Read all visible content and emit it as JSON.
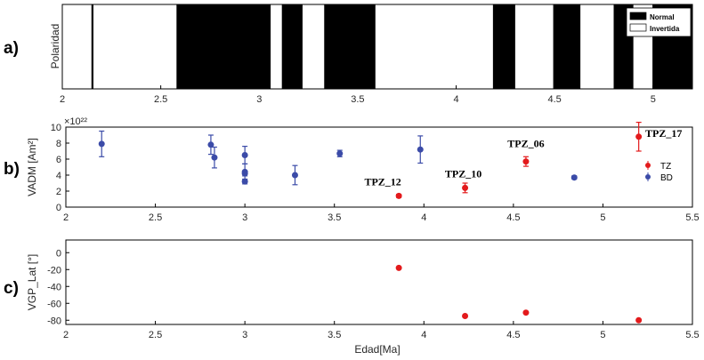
{
  "chart_data": [
    {
      "panel": "a)",
      "type": "polarity-timescale",
      "ylabel": "Polaridad",
      "xlim": [
        2,
        5.2
      ],
      "xticks": [
        "2",
        "2.5",
        "3",
        "3.5",
        "4",
        "4.5",
        "5"
      ],
      "legend": {
        "position": "top-right",
        "entries": [
          {
            "label": "Normal",
            "color": "#000000"
          },
          {
            "label": "Invertida",
            "color": "#ffffff"
          }
        ]
      },
      "normal_intervals": [
        [
          2.148,
          2.158
        ],
        [
          2.58,
          3.058
        ],
        [
          3.115,
          3.22
        ],
        [
          3.33,
          3.59
        ],
        [
          4.187,
          4.3
        ],
        [
          4.493,
          4.631
        ],
        [
          4.8,
          4.9
        ],
        [
          4.997,
          5.2
        ]
      ]
    },
    {
      "panel": "b)",
      "type": "scatter",
      "ylabel": "VADM [Am²]",
      "y_multiplier": "×10²²",
      "xlim": [
        2,
        5.5
      ],
      "ylim": [
        0,
        10
      ],
      "xticks": [
        "2",
        "2.5",
        "3",
        "3.5",
        "4",
        "4.5",
        "5",
        "5.5"
      ],
      "yticks": [
        "0",
        "2",
        "4",
        "6",
        "8",
        "10"
      ],
      "legend": {
        "position": "right",
        "entries": [
          "TZ",
          "BD"
        ]
      },
      "series": [
        {
          "name": "TZ",
          "color": "#e31a1c",
          "points": [
            {
              "x": 3.86,
              "y": 1.4,
              "err": 0.2,
              "label": "TPZ_12"
            },
            {
              "x": 4.23,
              "y": 2.4,
              "err": 0.6,
              "label": "TPZ_10"
            },
            {
              "x": 4.57,
              "y": 5.7,
              "err": 0.6,
              "label": "TPZ_06"
            },
            {
              "x": 5.2,
              "y": 8.8,
              "err": 1.8,
              "label": "TPZ_17"
            }
          ]
        },
        {
          "name": "BD",
          "color": "#3b4ba8",
          "points": [
            {
              "x": 2.2,
              "y": 7.9,
              "err": 1.6
            },
            {
              "x": 2.81,
              "y": 7.8,
              "err": 1.2
            },
            {
              "x": 2.83,
              "y": 6.2,
              "err": 1.3
            },
            {
              "x": 3.0,
              "y": 6.5,
              "err": 1.1
            },
            {
              "x": 3.0,
              "y": 4.4,
              "err": 1.0
            },
            {
              "x": 3.0,
              "y": 4.2,
              "err": 0.3
            },
            {
              "x": 3.0,
              "y": 3.2,
              "err": 0.3
            },
            {
              "x": 3.28,
              "y": 4.0,
              "err": 1.2
            },
            {
              "x": 3.53,
              "y": 6.7,
              "err": 0.4
            },
            {
              "x": 3.98,
              "y": 7.2,
              "err": 1.7
            },
            {
              "x": 4.84,
              "y": 3.7,
              "err": 0.2
            }
          ]
        }
      ]
    },
    {
      "panel": "c)",
      "type": "scatter",
      "ylabel": "VGP_Lat [°]",
      "xlabel": "Edad[Ma]",
      "xlim": [
        2,
        5.5
      ],
      "ylim": [
        -85,
        15
      ],
      "xticks": [
        "2",
        "2.5",
        "3",
        "3.5",
        "4",
        "4.5",
        "5",
        "5.5"
      ],
      "yticks": [
        "-80",
        "-60",
        "-40",
        "-20",
        "0"
      ],
      "series": [
        {
          "name": "TZ",
          "color": "#e31a1c",
          "points": [
            {
              "x": 3.86,
              "y": -18
            },
            {
              "x": 4.23,
              "y": -75
            },
            {
              "x": 4.57,
              "y": -71
            },
            {
              "x": 5.2,
              "y": -80
            }
          ]
        }
      ]
    }
  ]
}
